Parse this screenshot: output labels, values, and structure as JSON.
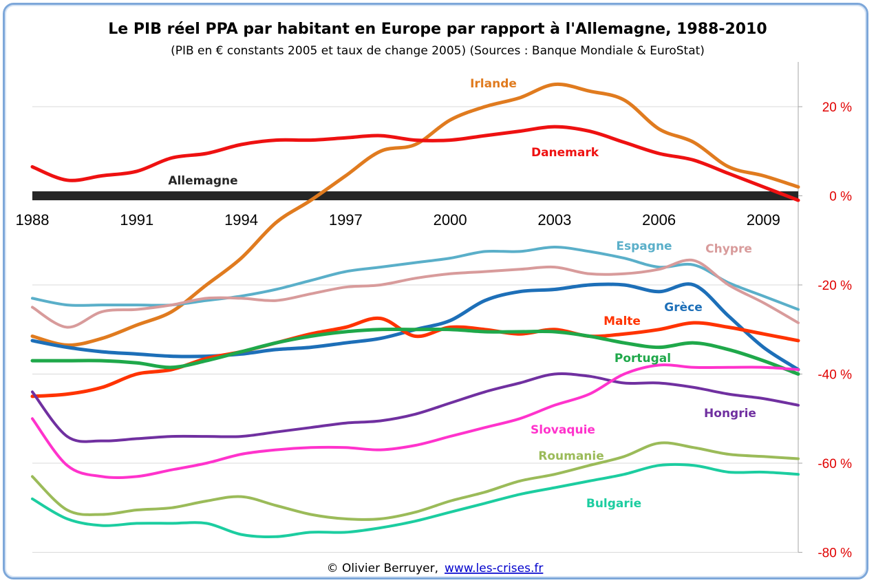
{
  "chart_data": {
    "type": "line",
    "title": "Le PIB réel PPA par habitant en Europe par rapport à l'Allemagne, 1988-2010",
    "subtitle": "(PIB en € constants 2005 et taux de change 2005) (Sources : Banque Mondiale & EuroStat)",
    "x": [
      1988,
      1989,
      1990,
      1991,
      1992,
      1993,
      1994,
      1995,
      1996,
      1997,
      1998,
      1999,
      2000,
      2001,
      2002,
      2003,
      2004,
      2005,
      2006,
      2007,
      2008,
      2009,
      2010
    ],
    "x_tick_labels": [
      "1988",
      "1991",
      "1994",
      "1997",
      "2000",
      "2003",
      "2006",
      "2009"
    ],
    "x_tick_values": [
      1988,
      1991,
      1994,
      1997,
      2000,
      2003,
      2006,
      2009
    ],
    "ylim": [
      -80,
      30
    ],
    "y_ticks": [
      20,
      0,
      -20,
      -40,
      -60,
      -80
    ],
    "y_tick_labels": [
      "20 %",
      "0 %",
      "-20 %",
      "-40 %",
      "-60 %",
      "-80 %"
    ],
    "grid": true,
    "series": [
      {
        "name": "Allemagne",
        "color": "#262626",
        "width": 13,
        "values": [
          0,
          0,
          0,
          0,
          0,
          0,
          0,
          0,
          0,
          0,
          0,
          0,
          0,
          0,
          0,
          0,
          0,
          0,
          0,
          0,
          0,
          0,
          0
        ]
      },
      {
        "name": "Irlande",
        "color": "#e07b1f",
        "width": 5,
        "values": [
          -31.5,
          -33.5,
          -32,
          -29,
          -26,
          -20,
          -14,
          -6,
          -1,
          4.5,
          10,
          11.5,
          17,
          20,
          22,
          25,
          23.5,
          21.5,
          15,
          12,
          6.5,
          4.5,
          2
        ]
      },
      {
        "name": "Danemark",
        "color": "#ee1111",
        "width": 5,
        "values": [
          6.5,
          3.5,
          4.5,
          5.5,
          8.5,
          9.5,
          11.5,
          12.5,
          12.5,
          13,
          13.5,
          12.5,
          12.5,
          13.5,
          14.5,
          15.5,
          14.5,
          12,
          9.5,
          8,
          5,
          2,
          -1
        ]
      },
      {
        "name": "Espagne",
        "color": "#5aafc9",
        "width": 4,
        "values": [
          -23,
          -24.5,
          -24.5,
          -24.5,
          -24.5,
          -23.5,
          -22.5,
          -21,
          -19,
          -17,
          -16,
          -15,
          -14,
          -12.5,
          -12.5,
          -11.5,
          -12.5,
          -14,
          -16,
          -15.5,
          -19.5,
          -22.5,
          -25.5
        ]
      },
      {
        "name": "Chypre",
        "color": "#d89b9b",
        "width": 4,
        "values": [
          -25,
          -29.5,
          -26,
          -25.5,
          -24.5,
          -23,
          -23,
          -23.5,
          -22,
          -20.5,
          -20,
          -18.5,
          -17.5,
          -17,
          -16.5,
          -16,
          -17.5,
          -17.5,
          -16.5,
          -14.5,
          -20,
          -24,
          -28.5
        ]
      },
      {
        "name": "Grèce",
        "color": "#1d6fb8",
        "width": 5,
        "values": [
          -32.5,
          -34,
          -35,
          -35.5,
          -36,
          -36,
          -35.5,
          -34.5,
          -34,
          -33,
          -32,
          -30,
          -28,
          -23.5,
          -21.5,
          -21,
          -20,
          -20,
          -21.5,
          -20,
          -27,
          -34,
          -39
        ]
      },
      {
        "name": "Malte",
        "color": "#ff3300",
        "width": 5,
        "values": [
          -45,
          -44.5,
          -43,
          -40,
          -39,
          -36.5,
          -35,
          -33,
          -31,
          -29.5,
          -27.5,
          -31.5,
          -29.5,
          -30,
          -31,
          -30,
          -31.5,
          -31,
          -30,
          -28.5,
          -29.5,
          -31,
          -32.5
        ]
      },
      {
        "name": "Portugal",
        "color": "#1fa84a",
        "width": 5,
        "values": [
          -37,
          -37,
          -37,
          -37.5,
          -38.5,
          -37,
          -35,
          -33,
          -31.5,
          -30.5,
          -30,
          -30,
          -30,
          -30.5,
          -30.5,
          -30.5,
          -31.5,
          -33,
          -34,
          -33,
          -34.5,
          -37,
          -40
        ]
      },
      {
        "name": "Hongrie",
        "color": "#7030a0",
        "width": 4,
        "values": [
          -44,
          -54,
          -55,
          -54.5,
          -54,
          -54,
          -54,
          -53,
          -52,
          -51,
          -50.5,
          -49,
          -46.5,
          -44,
          -42,
          -40,
          -40.5,
          -42,
          -42,
          -43,
          -44.5,
          -45.5,
          -47
        ]
      },
      {
        "name": "Slovaquie",
        "color": "#ff33cc",
        "width": 4,
        "values": [
          -50,
          -60.5,
          -63,
          -63,
          -61.5,
          -60,
          -58,
          -57,
          -56.5,
          -56.5,
          -57,
          -56,
          -54,
          -52,
          -50,
          -47,
          -44.5,
          -40,
          -38,
          -38.5,
          -38.5,
          -38.5,
          -39
        ]
      },
      {
        "name": "Roumanie",
        "color": "#9bbb59",
        "width": 4,
        "values": [
          -63,
          -70.5,
          -71.5,
          -70.5,
          -70,
          -68.5,
          -67.5,
          -69.5,
          -71.5,
          -72.5,
          -72.5,
          -71,
          -68.5,
          -66.5,
          -64,
          -62.5,
          -60.5,
          -58.5,
          -55.5,
          -56.5,
          -58,
          -58.5,
          -59
        ]
      },
      {
        "name": "Bulgarie",
        "color": "#1ccda0",
        "width": 4,
        "values": [
          -68,
          -72.5,
          -74,
          -73.5,
          -73.5,
          -73.5,
          -76,
          -76.5,
          -75.5,
          -75.5,
          -74.5,
          -73,
          -71,
          -69,
          -67,
          -65.5,
          -64,
          -62.5,
          -60.5,
          -60.5,
          -62,
          -62,
          -62.5
        ]
      }
    ],
    "labels": [
      {
        "text": "Irlande",
        "series": "Irlande",
        "color": "#e07b1f"
      },
      {
        "text": "Danemark",
        "series": "Danemark",
        "color": "#ee1111"
      },
      {
        "text": "Allemagne",
        "series": "Allemagne",
        "color": "#262626"
      },
      {
        "text": "Espagne",
        "series": "Espagne",
        "color": "#5aafc9"
      },
      {
        "text": "Chypre",
        "series": "Chypre",
        "color": "#d89b9b"
      },
      {
        "text": "Grèce",
        "series": "Grèce",
        "color": "#1d6fb8"
      },
      {
        "text": "Malte",
        "series": "Malte",
        "color": "#ff3300"
      },
      {
        "text": "Portugal",
        "series": "Portugal",
        "color": "#1fa84a"
      },
      {
        "text": "Hongrie",
        "series": "Hongrie",
        "color": "#7030a0"
      },
      {
        "text": "Slovaquie",
        "series": "Slovaquie",
        "color": "#ff33cc"
      },
      {
        "text": "Roumanie",
        "series": "Roumanie",
        "color": "#9bbb59"
      },
      {
        "text": "Bulgarie",
        "series": "Bulgarie",
        "color": "#1ccda0"
      }
    ]
  },
  "footer": {
    "copyright": "© Olivier Berruyer,",
    "link": "www.les-crises.fr"
  }
}
